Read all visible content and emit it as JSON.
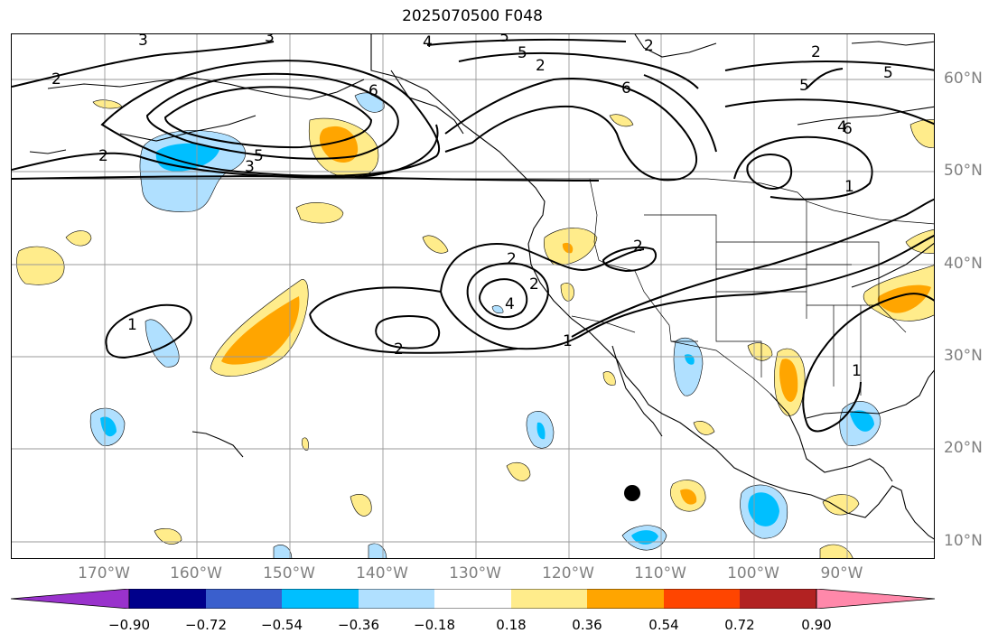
{
  "title": "2025070500 F048",
  "lon_labels": [
    "170°W",
    "160°W",
    "150°W",
    "140°W",
    "130°W",
    "120°W",
    "110°W",
    "100°W",
    "90°W"
  ],
  "lat_labels": [
    "60°N",
    "50°N",
    "40°N",
    "30°N",
    "20°N",
    "10°N"
  ],
  "colorbar": {
    "ticks": [
      "−0.90",
      "−0.72",
      "−0.54",
      "−0.36",
      "−0.18",
      "0.18",
      "0.36",
      "0.54",
      "0.72",
      "0.90"
    ],
    "colors": [
      "#9932cc",
      "#00008b",
      "#3a5fcd",
      "#00bfff",
      "#b0e0ff",
      "#ffffff",
      "#ffec8b",
      "#ffa500",
      "#ff4500",
      "#b22222",
      "#ff88aa"
    ]
  },
  "contour_labels": [
    "3",
    "3",
    "4",
    "5",
    "2",
    "2",
    "2",
    "5",
    "2",
    "6",
    "5",
    "5",
    "6",
    "6",
    "4",
    "5",
    "3",
    "2",
    "4",
    "2",
    "2",
    "2",
    "1",
    "1",
    "1",
    "1",
    "2"
  ],
  "marker": "storm-center"
}
